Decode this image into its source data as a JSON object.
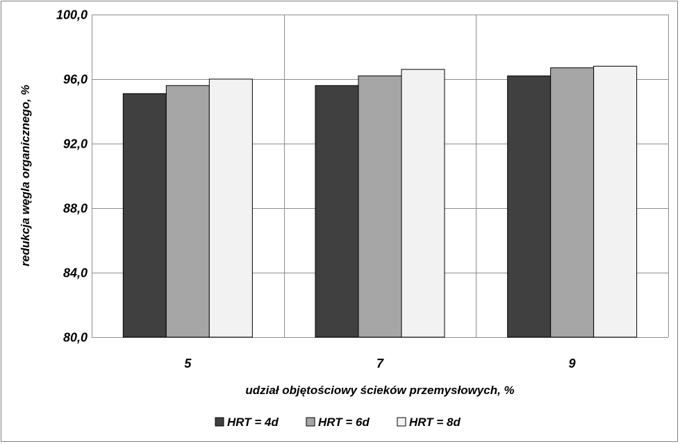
{
  "chart_data": {
    "type": "bar",
    "title": "",
    "xlabel": "udział objętościowy ścieków przemysłowych, %",
    "ylabel": "redukcja węgla organicznego, %",
    "categories": [
      "5",
      "7",
      "9"
    ],
    "series": [
      {
        "name": "HRT = 4d",
        "color": "#404040",
        "values": [
          95.1,
          95.6,
          96.2
        ]
      },
      {
        "name": "HRT = 6d",
        "color": "#a6a6a6",
        "values": [
          95.6,
          96.2,
          96.7
        ]
      },
      {
        "name": "HRT = 8d",
        "color": "#f2f2f2",
        "values": [
          96.0,
          96.6,
          96.8
        ]
      }
    ],
    "ylim": [
      80,
      100
    ],
    "yticks": [
      "80,0",
      "84,0",
      "88,0",
      "92,0",
      "96,0",
      "100,0"
    ],
    "grid": true,
    "legend_position": "bottom"
  }
}
